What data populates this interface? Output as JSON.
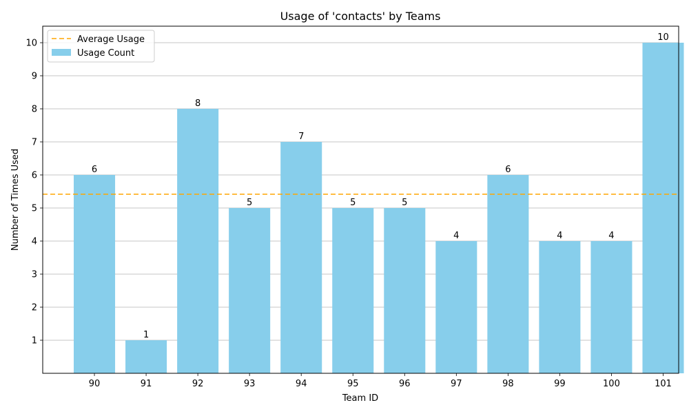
{
  "chart_data": {
    "type": "bar",
    "title": "Usage of 'contacts' by Teams",
    "xlabel": "Team ID",
    "ylabel": "Number of Times Used",
    "categories": [
      "90",
      "91",
      "92",
      "93",
      "94",
      "95",
      "96",
      "97",
      "98",
      "99",
      "100",
      "101"
    ],
    "series": [
      {
        "name": "Usage Count",
        "values": [
          6,
          1,
          8,
          5,
          7,
          5,
          5,
          4,
          6,
          4,
          4,
          10
        ],
        "color": "#87ceeb"
      }
    ],
    "average": {
      "name": "Average Usage",
      "value": 5.4167,
      "color": "#ffa500"
    },
    "yticks": [
      1,
      2,
      3,
      4,
      5,
      6,
      7,
      8,
      9,
      10
    ],
    "ylim": [
      0,
      10.5
    ],
    "grid": "y",
    "legend_position": "top-left",
    "data_labels": true
  }
}
